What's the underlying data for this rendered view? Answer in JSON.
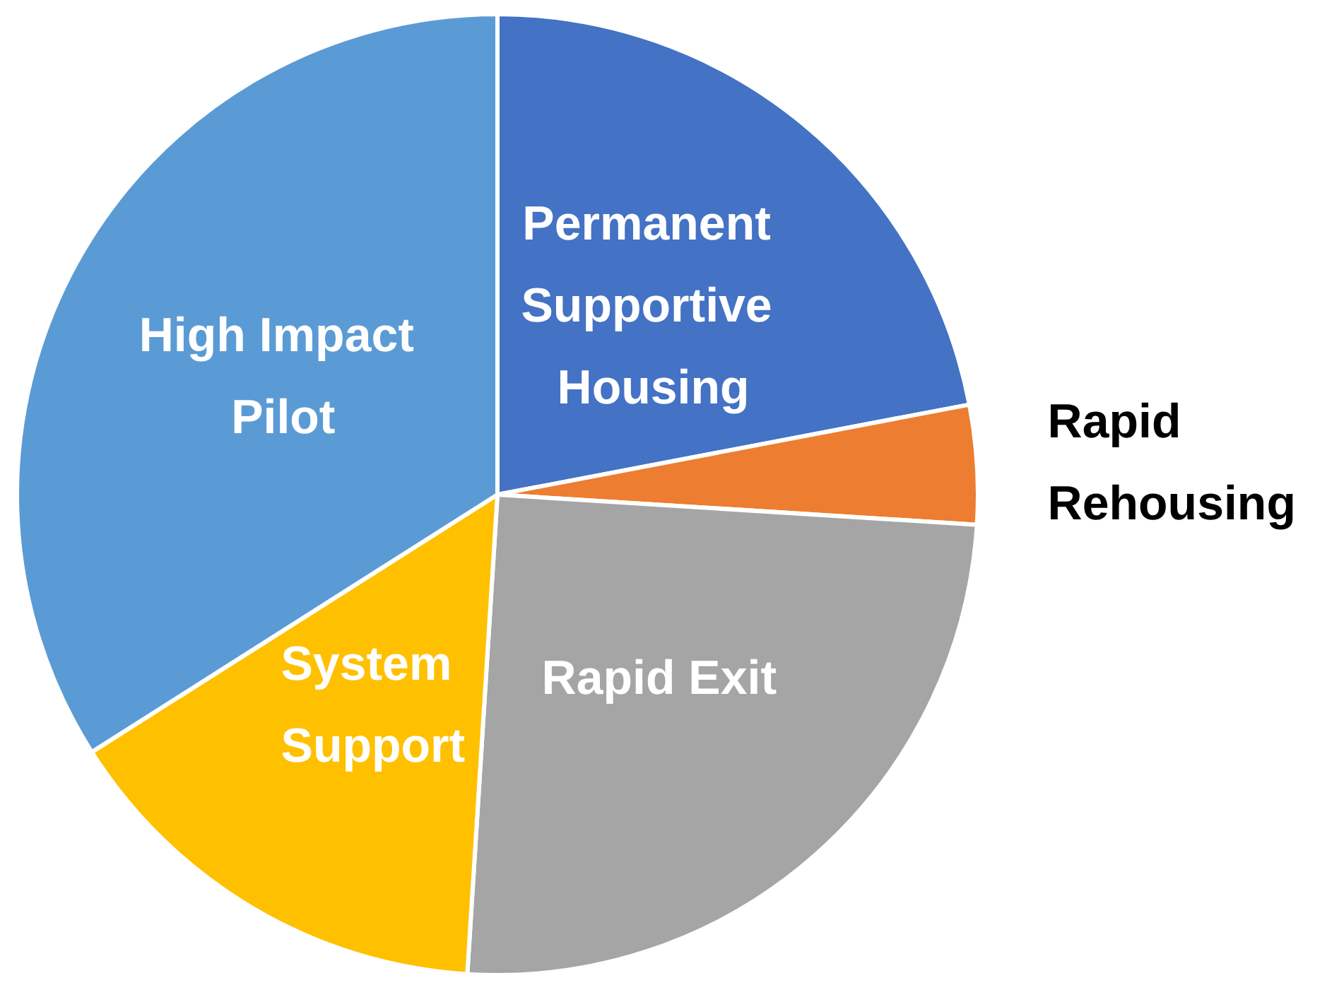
{
  "chart_data": {
    "type": "pie",
    "categories": [
      "Permanent Supportive Housing",
      "Rapid Rehousing",
      "Rapid Exit",
      "System Support",
      "High Impact Pilot"
    ],
    "values": [
      22,
      4,
      25,
      15,
      34
    ],
    "colors": [
      "#4472c4",
      "#ed7d31",
      "#a5a5a5",
      "#ffc000",
      "#5b9bd5"
    ],
    "legend": false
  }
}
